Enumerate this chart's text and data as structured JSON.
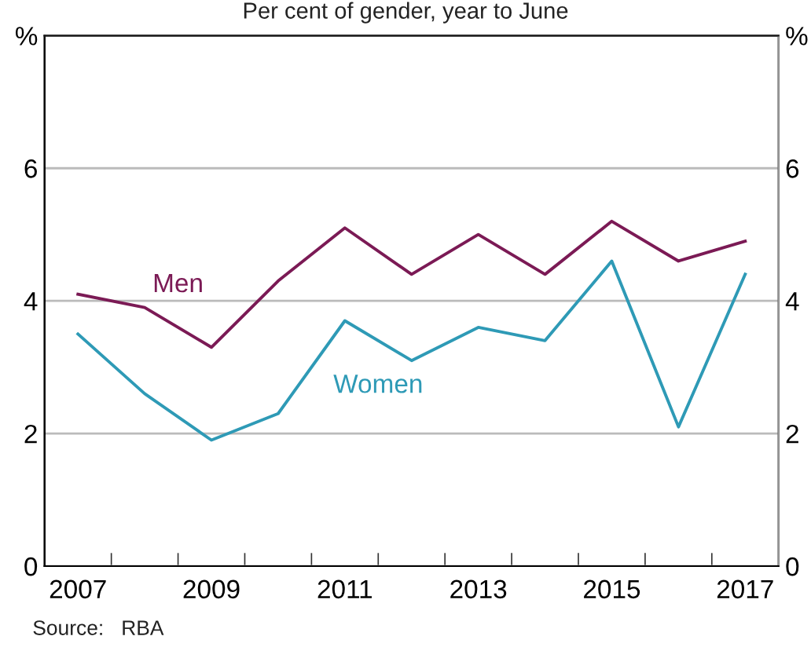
{
  "chart_data": {
    "type": "line",
    "title": "Per cent of gender, year to June",
    "categories": [
      "2007",
      null,
      "2009",
      null,
      "2011",
      null,
      "2013",
      null,
      "2015",
      null,
      "2017"
    ],
    "series": [
      {
        "name": "Men",
        "color": "#7b1a55",
        "values": [
          4.1,
          3.9,
          3.3,
          4.3,
          5.1,
          4.4,
          5.0,
          4.4,
          5.2,
          4.6,
          4.9
        ]
      },
      {
        "name": "Women",
        "color": "#2e9ab6",
        "values": [
          3.5,
          2.6,
          1.9,
          2.3,
          3.7,
          3.1,
          3.6,
          3.4,
          4.6,
          2.1,
          4.4
        ]
      }
    ],
    "ylim": [
      0,
      8
    ],
    "yticks": [
      0,
      2,
      4,
      6,
      {
        "value": 8,
        "label": "%"
      }
    ],
    "y2lim": [
      0,
      8
    ],
    "y2ticks": [
      0,
      2,
      4,
      6,
      {
        "value": 8,
        "label": "%"
      }
    ],
    "grid": "y",
    "legend": false,
    "marker": "none",
    "line_style": "solid",
    "annotations": [
      "Source:   RBA"
    ]
  }
}
